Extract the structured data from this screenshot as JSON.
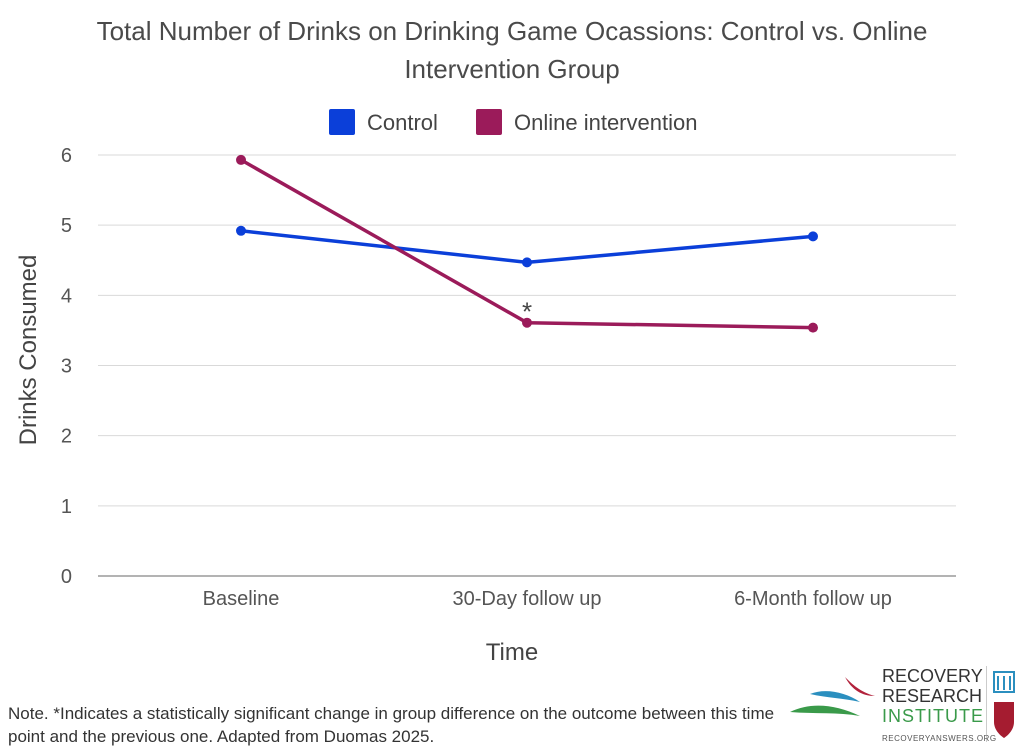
{
  "chart_data": {
    "type": "line",
    "title_line1": "Total Number of Drinks on Drinking Game Ocassions: Control vs. Online",
    "title_line2": "Intervention Group",
    "xlabel": "Time",
    "ylabel": "Drinks Consumed",
    "categories": [
      "Baseline",
      "30-Day follow up",
      "6-Month follow up"
    ],
    "yticks": [
      "0",
      "1",
      "2",
      "3",
      "4",
      "5",
      "6"
    ],
    "ylim": [
      0,
      6
    ],
    "grid": true,
    "legend_position": "top",
    "series": [
      {
        "name": "Control",
        "color": "#0b3fd9",
        "values": [
          4.92,
          4.47,
          4.84
        ]
      },
      {
        "name": "Online intervention",
        "color": "#9b1b5a",
        "values": [
          5.93,
          3.61,
          3.54
        ]
      }
    ],
    "annotation": {
      "text": "*",
      "series_index": 1,
      "category_index": 1
    }
  },
  "note": "Note. *Indicates a statistically significant change in group difference on the outcome between this time point and the previous one. Adapted from Duomas 2025.",
  "logo": {
    "line1": "RECOVERY",
    "line2": "RESEARCH",
    "line3": "INSTITUTE",
    "url": "RECOVERYANSWERS.ORG"
  }
}
